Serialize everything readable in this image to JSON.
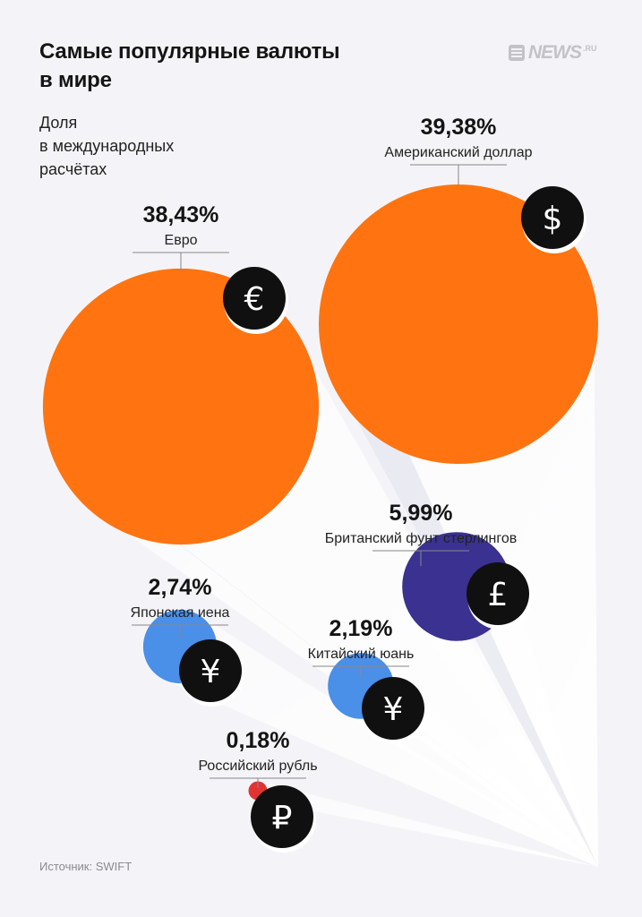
{
  "title": [
    "Самые популярные валюты",
    "в мире"
  ],
  "subtitle": [
    "Доля",
    "в международных",
    "расчётах"
  ],
  "logo": {
    "text": "NEWS",
    "suffix": ".RU"
  },
  "source": "Источник: SWIFT",
  "colors": {
    "orange": "#ff7410",
    "blue": "#4a8fe8",
    "navy": "#3a3191",
    "red": "#e23333",
    "badge": "#101010",
    "background": "#f4f4f8"
  },
  "chart_data": {
    "type": "bubble",
    "unit": "%",
    "series": [
      {
        "name": "Американский доллар",
        "value_label": "39,38%",
        "value": 39.38,
        "symbol": "$",
        "symbol_icon": "dollar-icon",
        "color": "#ff7410"
      },
      {
        "name": "Евро",
        "value_label": "38,43%",
        "value": 38.43,
        "symbol": "€",
        "symbol_icon": "euro-icon",
        "color": "#ff7410"
      },
      {
        "name": "Британский фунт стерлингов",
        "value_label": "5,99%",
        "value": 5.99,
        "symbol": "£",
        "symbol_icon": "pound-icon",
        "color": "#3a3191"
      },
      {
        "name": "Японская иена",
        "value_label": "2,74%",
        "value": 2.74,
        "symbol": "¥",
        "symbol_icon": "yen-icon",
        "color": "#4a8fe8"
      },
      {
        "name": "Китайский юань",
        "value_label": "2,19%",
        "value": 2.19,
        "symbol": "¥",
        "symbol_icon": "yuan-icon",
        "color": "#4a8fe8"
      },
      {
        "name": "Российский рубль",
        "value_label": "0,18%",
        "value": 0.18,
        "symbol": "₽",
        "symbol_icon": "ruble-icon",
        "color": "#e23333"
      }
    ]
  }
}
